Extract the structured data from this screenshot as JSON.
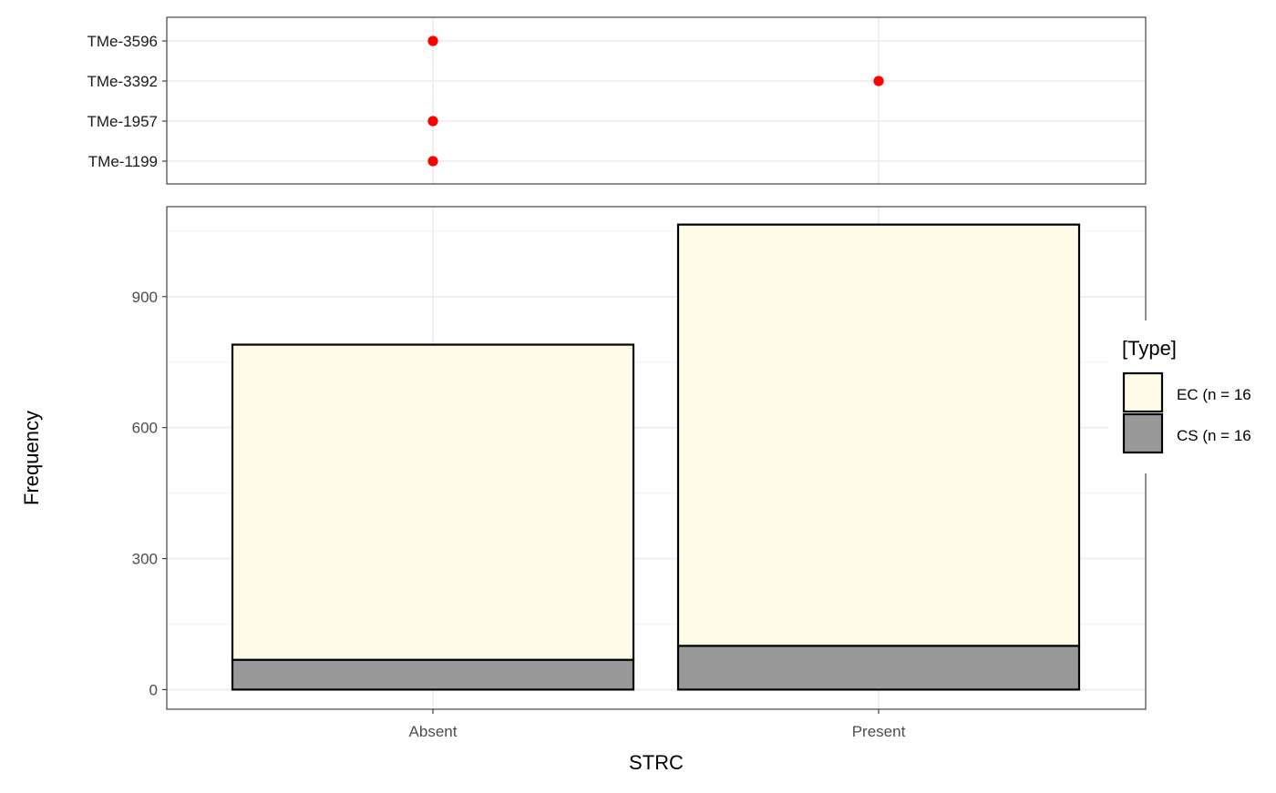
{
  "chart_data": [
    {
      "type": "scatter",
      "x_categories": [
        "Absent",
        "Present"
      ],
      "y_categories": [
        "TMe-1199",
        "TMe-1957",
        "TMe-3392",
        "TMe-3596"
      ],
      "points": [
        {
          "x": "Absent",
          "y": "TMe-3596"
        },
        {
          "x": "Present",
          "y": "TMe-3392"
        },
        {
          "x": "Absent",
          "y": "TMe-1957"
        },
        {
          "x": "Absent",
          "y": "TMe-1199"
        }
      ],
      "point_color": "#ff0000",
      "grid": true
    },
    {
      "type": "bar",
      "stacked": true,
      "categories": [
        "Absent",
        "Present"
      ],
      "series": [
        {
          "name": "CS (n = 16",
          "values": [
            68,
            100
          ],
          "color": "#999999"
        },
        {
          "name": "EC (n = 16",
          "values": [
            790,
            1065
          ],
          "color": "#fefbe6"
        }
      ],
      "xlabel": "STRC",
      "ylabel": "Frequency",
      "ylim": [
        -45,
        1106
      ],
      "yticks": [
        "0",
        "300",
        "600",
        "900"
      ],
      "legend": {
        "title": "[Type]",
        "position": "right",
        "entries": [
          "EC (n = 16",
          "CS (n = 16"
        ]
      },
      "grid": true
    }
  ]
}
